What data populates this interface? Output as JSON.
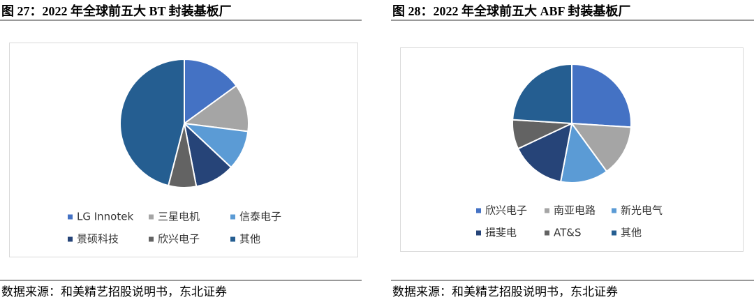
{
  "chart_data": [
    {
      "type": "pie",
      "title": "图 27：2022 年全球前五大 BT 封装基板厂",
      "source": "数据来源：和美精艺招股说明书，东北证券",
      "categories": [
        "LG Innotek",
        "三星电机",
        "信泰电子",
        "景硕科技",
        "欣兴电子",
        "其他"
      ],
      "values": [
        15,
        12,
        10,
        10,
        7,
        46
      ],
      "colors": [
        "#4472c4",
        "#a5a5a5",
        "#5b9bd5",
        "#264478",
        "#636363",
        "#255e91"
      ]
    },
    {
      "type": "pie",
      "title": "图 28：2022 年全球前五大 ABF 封装基板厂",
      "source": "数据来源：和美精艺招股说明书，东北证券",
      "categories": [
        "欣兴电子",
        "南亚电路",
        "新光电气",
        "揖斐电",
        "AT&S",
        "其他"
      ],
      "values": [
        26,
        14,
        13,
        15,
        8,
        24
      ],
      "colors": [
        "#4472c4",
        "#a5a5a5",
        "#5b9bd5",
        "#264478",
        "#636363",
        "#255e91"
      ]
    }
  ]
}
